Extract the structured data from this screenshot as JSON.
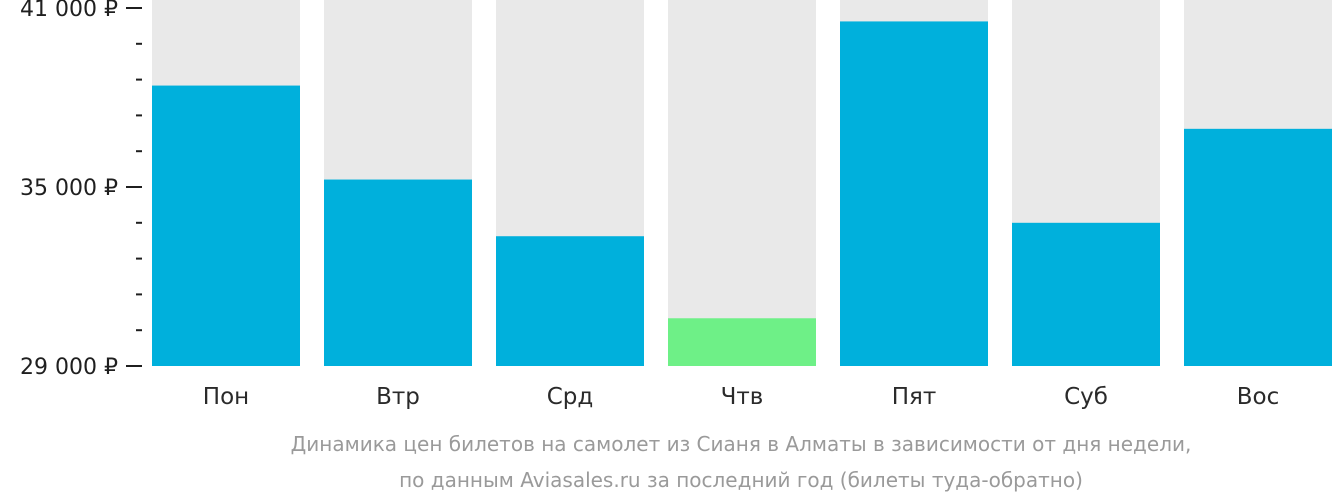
{
  "chart_data": {
    "type": "bar",
    "categories": [
      "Пон",
      "Втр",
      "Срд",
      "Чтв",
      "Пят",
      "Суб",
      "Вос"
    ],
    "values": [
      38400,
      35250,
      33350,
      30600,
      40550,
      33800,
      36950
    ],
    "ylim": [
      29000,
      41000
    ],
    "yticks_major": [
      {
        "value": 41000,
        "label": "41 000 ₽"
      },
      {
        "value": 35000,
        "label": "35 000 ₽"
      },
      {
        "value": 29000,
        "label": "29 000 ₽"
      }
    ],
    "yticks_minor_step": 1200,
    "highlight_index": 3,
    "colors": {
      "bar": "#00b0dc",
      "highlight": "#6ef087",
      "background_bar": "#e9e9e9",
      "axis": "#1f1f1f"
    },
    "title": "",
    "xlabel": "",
    "ylabel": "",
    "grid": false,
    "legend": "none"
  },
  "caption": {
    "line1": "Динамика цен билетов на самолет из Сианя в Алматы в зависимости от дня недели,",
    "line2": "по данным Aviasales.ru за последний год (билеты туда-обратно)"
  }
}
